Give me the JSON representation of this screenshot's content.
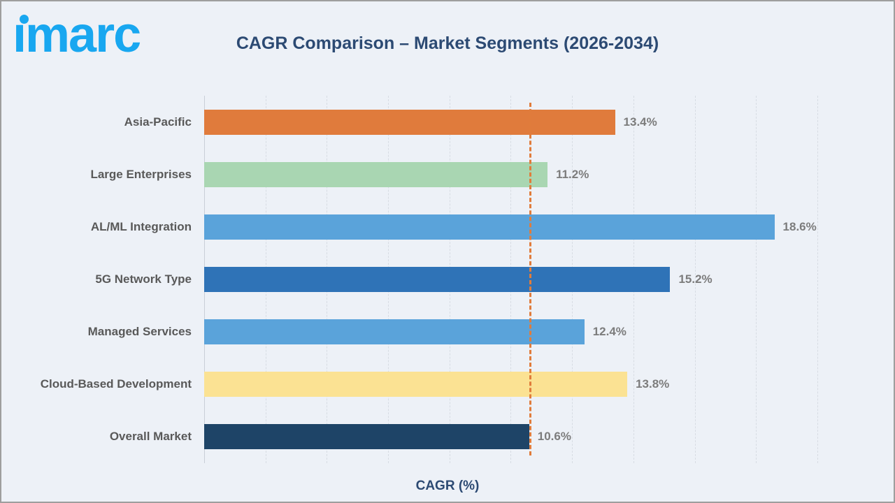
{
  "logo": {
    "brand": "imarc",
    "color": "#18A7F0"
  },
  "header": {
    "title": "CAGR Comparison – Market Segments (2026-2034)"
  },
  "chart_data": {
    "type": "bar",
    "orientation": "horizontal",
    "title": "CAGR Comparison – Market Segments (2026-2034)",
    "categories": [
      "Asia-Pacific",
      "Large Enterprises",
      "AL/ML Integration",
      "5G Network Type",
      "Managed Services",
      "Cloud-Based Development",
      "Overall Market"
    ],
    "values": [
      13.4,
      11.2,
      18.6,
      15.2,
      12.4,
      13.8,
      10.6
    ],
    "value_labels": [
      "13.4%",
      "11.2%",
      "18.6%",
      "15.2%",
      "12.4%",
      "13.8%",
      "10.6%"
    ],
    "bar_colors": [
      "#E07B3C",
      "#A9D6B2",
      "#5AA3DA",
      "#2F73B7",
      "#5AA3DA",
      "#FBE293",
      "#1E4467"
    ],
    "xlabel": "CAGR (%)",
    "ylabel": "",
    "xlim": [
      0,
      20.8
    ],
    "gridline_step": 2,
    "grid": "vertical-dashed",
    "legend": "none",
    "reference_line": {
      "value": 10.6,
      "color": "#E07C3B",
      "style": "dashed"
    }
  },
  "colors": {
    "background": "#EDF1F7",
    "title_text": "#2C4A73",
    "category_text": "#595959",
    "value_text": "#7C7C7C",
    "gridline": "#D7DCE3",
    "frame_border": "#9E9E9E"
  }
}
